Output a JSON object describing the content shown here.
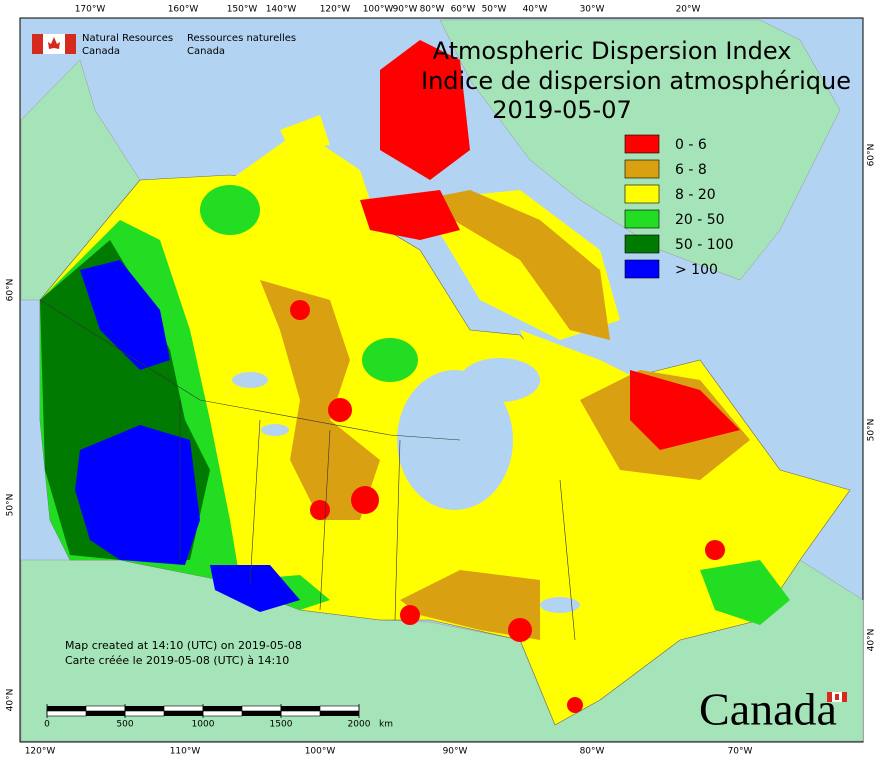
{
  "map": {
    "title_en": "Atmospheric Dispersion Index",
    "title_fr": "Indice de dispersion atmosphérique",
    "date": "2019-05-07",
    "agency": {
      "en_line1": "Natural Resources",
      "en_line2": "Canada",
      "fr_line1": "Ressources naturelles",
      "fr_line2": "Canada"
    },
    "legend": [
      {
        "label": "0 - 6",
        "color": "#ff0000"
      },
      {
        "label": "6 - 8",
        "color": "#d9a012"
      },
      {
        "label": "8 - 20",
        "color": "#ffff00"
      },
      {
        "label": "20 - 50",
        "color": "#22dd22"
      },
      {
        "label": "50 - 100",
        "color": "#007a00"
      },
      {
        "label": "> 100",
        "color": "#0000ff"
      }
    ],
    "top_longitudes": [
      "170°W",
      "160°W",
      "150°W",
      "140°W",
      "120°W",
      "100°W",
      "90°W",
      "80°W",
      "60°W",
      "50°W",
      "40°W",
      "30°W",
      "20°W"
    ],
    "bottom_longitudes": [
      "120°W",
      "110°W",
      "100°W",
      "90°W",
      "80°W",
      "70°W"
    ],
    "left_latitudes": [
      "60°N",
      "50°N",
      "40°N"
    ],
    "right_latitudes": [
      "60°N",
      "50°N",
      "40°N"
    ],
    "footnote_en": "Map created at 14:10 (UTC) on 2019-05-08",
    "footnote_fr": "Carte créée le 2019-05-08 (UTC) à 14:10",
    "scale_bar": {
      "ticks": [
        0,
        500,
        1000,
        1500,
        2000
      ],
      "unit": "km"
    },
    "wordmark": "Canada"
  }
}
